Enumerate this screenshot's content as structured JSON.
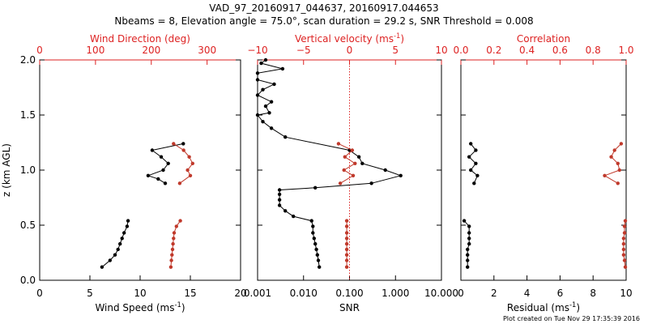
{
  "title_line1": "VAD_97_20160917_044637, 20160917.044653",
  "title_line2": "Nbeams = 8, Elevation angle = 75.0°, scan duration = 29.2 s, SNR Threshold = 0.008",
  "footer": "Plot created on Tue Nov 29 17:35:39 2016",
  "colors": {
    "black": "#000000",
    "red": "#c0392b",
    "axis_red": "#dd2222"
  },
  "chart_data": [
    {
      "type": "line",
      "panel": "wind",
      "ylabel_main": "z (km AGL)",
      "ylabel_sup": "",
      "ylim": [
        0,
        2.0
      ],
      "yticks": [
        "0.0",
        "0.5",
        "1.0",
        "1.5",
        "2.0"
      ],
      "xlabel_main": "Wind Speed (ms",
      "xlabel_sup": "-1",
      "xlabel_end": ")",
      "xlim": [
        0,
        20
      ],
      "xticks": [
        "0",
        "5",
        "10",
        "15",
        "20"
      ],
      "top_label": "Wind Direction (deg)",
      "top_xlim": [
        0,
        360
      ],
      "top_xticks": [
        "0",
        "100",
        "200",
        "300"
      ],
      "series": [
        {
          "axis": "bottom",
          "color": "#000000",
          "segments": [
            [
              [
                6.2,
                0.12
              ],
              [
                7.0,
                0.18
              ],
              [
                7.5,
                0.23
              ],
              [
                7.8,
                0.28
              ],
              [
                8.0,
                0.33
              ],
              [
                8.2,
                0.38
              ],
              [
                8.4,
                0.43
              ],
              [
                8.7,
                0.49
              ],
              [
                8.8,
                0.54
              ]
            ],
            [
              [
                12.5,
                0.88
              ],
              [
                11.8,
                0.92
              ],
              [
                10.8,
                0.95
              ],
              [
                12.3,
                1.0
              ],
              [
                12.8,
                1.06
              ],
              [
                12.1,
                1.12
              ],
              [
                11.2,
                1.18
              ],
              [
                14.3,
                1.24
              ]
            ]
          ]
        },
        {
          "axis": "top",
          "color": "#c0392b",
          "segments": [
            [
              [
                235,
                0.12
              ],
              [
                236,
                0.18
              ],
              [
                237,
                0.23
              ],
              [
                238,
                0.28
              ],
              [
                239,
                0.33
              ],
              [
                240,
                0.38
              ],
              [
                241,
                0.43
              ],
              [
                245,
                0.49
              ],
              [
                252,
                0.54
              ]
            ],
            [
              [
                251,
                0.88
              ],
              [
                270,
                0.95
              ],
              [
                265,
                1.0
              ],
              [
                274,
                1.06
              ],
              [
                268,
                1.12
              ],
              [
                258,
                1.18
              ],
              [
                240,
                1.24
              ]
            ]
          ]
        }
      ]
    },
    {
      "type": "line",
      "panel": "snr",
      "ylim": [
        0,
        2.0
      ],
      "xscale": "log",
      "xlabel_main": "SNR",
      "xlim": [
        0.001,
        10
      ],
      "xticks": [
        "0.001",
        "0.010",
        "0.100",
        "1.000",
        "10.000"
      ],
      "xtick_values": [
        0.001,
        0.01,
        0.1,
        1,
        10
      ],
      "top_label": "Vertical velocity (ms",
      "top_label_sup": "-1",
      "top_label_end": ")",
      "top_xlim": [
        -10,
        10
      ],
      "top_xticks": [
        "−10",
        "−5",
        "0",
        "5",
        "10"
      ],
      "top_xtick_values": [
        -10,
        -5,
        0,
        5,
        10
      ],
      "reference_line": {
        "axis": "top",
        "x": 0,
        "style": "dotted"
      },
      "series": [
        {
          "axis": "bottom",
          "color": "#000000",
          "segments": [
            [
              [
                0.022,
                0.12
              ],
              [
                0.021,
                0.18
              ],
              [
                0.02,
                0.23
              ],
              [
                0.019,
                0.28
              ],
              [
                0.018,
                0.33
              ],
              [
                0.017,
                0.38
              ],
              [
                0.016,
                0.43
              ],
              [
                0.016,
                0.49
              ],
              [
                0.015,
                0.54
              ],
              [
                0.006,
                0.58
              ],
              [
                0.004,
                0.63
              ],
              [
                0.003,
                0.68
              ],
              [
                0.003,
                0.73
              ],
              [
                0.003,
                0.78
              ],
              [
                0.003,
                0.82
              ],
              [
                0.018,
                0.84
              ],
              [
                0.3,
                0.88
              ],
              [
                1.3,
                0.95
              ],
              [
                0.6,
                1.0
              ],
              [
                0.19,
                1.06
              ],
              [
                0.16,
                1.12
              ],
              [
                0.1,
                1.18
              ],
              [
                0.004,
                1.3
              ],
              [
                0.002,
                1.38
              ],
              [
                0.0013,
                1.44
              ],
              [
                0.001,
                1.5
              ],
              [
                0.0018,
                1.52
              ],
              [
                0.0015,
                1.58
              ],
              [
                0.002,
                1.62
              ],
              [
                0.001,
                1.68
              ],
              [
                0.0013,
                1.73
              ],
              [
                0.0023,
                1.78
              ],
              [
                0.001,
                1.82
              ],
              [
                0.001,
                1.88
              ],
              [
                0.0035,
                1.92
              ],
              [
                0.0012,
                1.97
              ],
              [
                0.0015,
                2.0
              ]
            ]
          ]
        },
        {
          "axis": "top",
          "color": "#c0392b",
          "segments": [
            [
              [
                -0.3,
                0.12
              ],
              [
                -0.3,
                0.18
              ],
              [
                -0.3,
                0.23
              ],
              [
                -0.3,
                0.28
              ],
              [
                -0.3,
                0.33
              ],
              [
                -0.3,
                0.38
              ],
              [
                -0.3,
                0.43
              ],
              [
                -0.3,
                0.49
              ],
              [
                -0.3,
                0.54
              ]
            ],
            [
              [
                -1.0,
                0.88
              ],
              [
                0.4,
                0.95
              ],
              [
                -0.6,
                1.0
              ],
              [
                0.6,
                1.06
              ],
              [
                -0.5,
                1.12
              ],
              [
                0.3,
                1.18
              ],
              [
                -1.2,
                1.24
              ]
            ]
          ]
        }
      ]
    },
    {
      "type": "line",
      "panel": "corr",
      "ylim": [
        0,
        2.0
      ],
      "xlabel_main": "Residual (ms",
      "xlabel_sup": "-1",
      "xlabel_end": ")",
      "xlim": [
        0,
        10
      ],
      "xticks": [
        "0",
        "2",
        "4",
        "6",
        "8",
        "10"
      ],
      "top_label": "Correlation",
      "top_xlim": [
        0,
        1.0
      ],
      "top_xticks": [
        "0.0",
        "0.2",
        "0.4",
        "0.6",
        "0.8",
        "1.0"
      ],
      "series": [
        {
          "axis": "bottom",
          "color": "#000000",
          "segments": [
            [
              [
                0.4,
                0.12
              ],
              [
                0.4,
                0.18
              ],
              [
                0.4,
                0.23
              ],
              [
                0.4,
                0.28
              ],
              [
                0.5,
                0.33
              ],
              [
                0.5,
                0.38
              ],
              [
                0.5,
                0.43
              ],
              [
                0.5,
                0.49
              ],
              [
                0.2,
                0.54
              ]
            ],
            [
              [
                0.8,
                0.88
              ],
              [
                1.0,
                0.95
              ],
              [
                0.6,
                1.0
              ],
              [
                0.9,
                1.06
              ],
              [
                0.5,
                1.12
              ],
              [
                0.9,
                1.18
              ],
              [
                0.6,
                1.24
              ]
            ]
          ]
        },
        {
          "axis": "top",
          "color": "#c0392b",
          "segments": [
            [
              [
                0.995,
                0.12
              ],
              [
                0.99,
                0.18
              ],
              [
                0.985,
                0.23
              ],
              [
                0.985,
                0.28
              ],
              [
                0.985,
                0.33
              ],
              [
                0.985,
                0.38
              ],
              [
                0.99,
                0.43
              ],
              [
                0.99,
                0.49
              ],
              [
                0.995,
                0.54
              ]
            ],
            [
              [
                0.95,
                0.88
              ],
              [
                0.87,
                0.95
              ],
              [
                0.96,
                1.0
              ],
              [
                0.95,
                1.06
              ],
              [
                0.91,
                1.12
              ],
              [
                0.93,
                1.18
              ],
              [
                0.97,
                1.24
              ]
            ]
          ]
        }
      ]
    }
  ]
}
